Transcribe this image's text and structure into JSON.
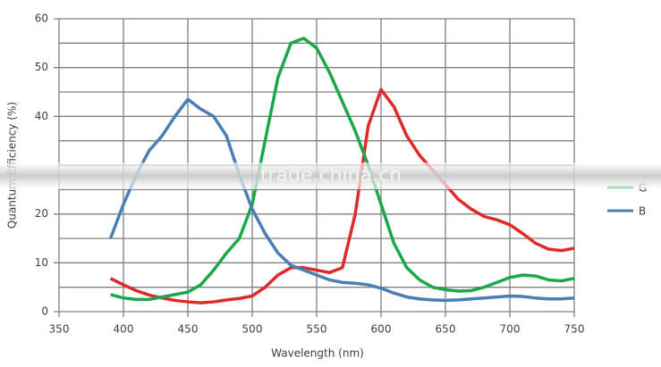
{
  "chart_data": {
    "type": "line",
    "x_label": "Wavelength (nm)",
    "y_label": "Quantum Efficiency (%)",
    "watermark": "trade.china.cn",
    "x": [
      390,
      400,
      410,
      420,
      430,
      440,
      450,
      460,
      470,
      480,
      490,
      500,
      510,
      520,
      530,
      540,
      550,
      560,
      570,
      580,
      590,
      600,
      610,
      620,
      630,
      640,
      650,
      660,
      670,
      680,
      690,
      700,
      710,
      720,
      730,
      740,
      750
    ],
    "series": [
      {
        "color": "#e02a2a",
        "values": [
          6.8,
          5.5,
          4.3,
          3.4,
          2.8,
          2.3,
          2,
          1.8,
          2,
          2.4,
          2.7,
          3.2,
          5,
          7.5,
          9,
          9,
          8.5,
          8,
          9,
          20,
          38,
          45.5,
          42,
          36,
          32,
          29,
          26,
          23,
          21,
          19.5,
          18.8,
          17.8,
          16,
          14,
          12.8,
          12.5,
          13
        ]
      },
      {
        "name": "G",
        "color": "#1aa84a",
        "values": [
          3.5,
          2.8,
          2.5,
          2.5,
          3,
          3.5,
          4,
          5.5,
          8.5,
          12,
          15,
          22,
          35,
          48,
          55,
          56,
          54,
          49,
          43,
          37,
          30,
          22,
          14,
          9,
          6.5,
          5,
          4.5,
          4.2,
          4.3,
          5,
          6,
          7,
          7.5,
          7.3,
          6.5,
          6.3,
          6.8
        ]
      },
      {
        "name": "B",
        "color": "#4a7fb5",
        "values": [
          15,
          22,
          28,
          33,
          36,
          40,
          43.5,
          41.5,
          40,
          36,
          28,
          21,
          16,
          12,
          9.5,
          8.5,
          7.5,
          6.5,
          6,
          5.8,
          5.5,
          4.8,
          3.8,
          3,
          2.6,
          2.4,
          2.3,
          2.4,
          2.6,
          2.8,
          3,
          3.2,
          3.1,
          2.8,
          2.6,
          2.6,
          2.8
        ]
      }
    ],
    "xlim": [
      350,
      750
    ],
    "xticks": [
      350,
      400,
      450,
      500,
      550,
      600,
      650,
      700,
      750
    ],
    "ylim": [
      0,
      60
    ],
    "yticks": [
      0,
      10,
      20,
      40,
      50,
      60
    ],
    "minor_yticks": [
      5,
      15,
      25,
      30,
      35,
      45,
      55
    ],
    "grid": true,
    "legend": "right"
  }
}
